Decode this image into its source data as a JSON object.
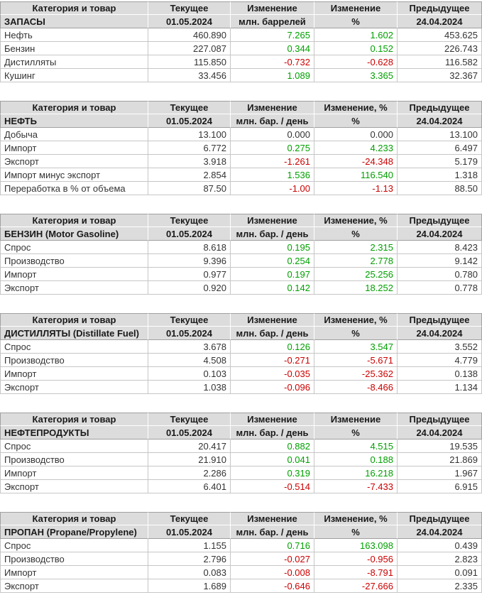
{
  "report": {
    "current_date": "01.05.2024",
    "previous_date": "24.04.2024",
    "colors": {
      "positive": "#00a000",
      "negative": "#cc0000",
      "neutral": "#333333",
      "header_background": "#dcdcdc",
      "header_border": "#a0a0a0",
      "cell_border": "#c6c6c6"
    }
  },
  "chart_data": [
    {
      "type": "table",
      "title": "ЗАПАСЫ",
      "unit": "млн. баррелей",
      "columns": [
        "Категория и товар",
        "Текущее",
        "Изменение",
        "Изменение",
        "Предыдущее"
      ],
      "subheader": [
        "ЗАПАСЫ",
        "01.05.2024",
        "млн. баррелей",
        "%",
        "24.04.2024"
      ],
      "rows": [
        [
          "Нефть",
          "460.890",
          "7.265",
          "1.602",
          "453.625"
        ],
        [
          "Бензин",
          "227.087",
          "0.344",
          "0.152",
          "226.743"
        ],
        [
          "Дистилляты",
          "115.850",
          "-0.732",
          "-0.628",
          "116.582"
        ],
        [
          "Кушинг",
          "33.456",
          "1.089",
          "3.365",
          "32.367"
        ]
      ]
    },
    {
      "type": "table",
      "title": "НЕФТЬ",
      "unit": "млн. бар. / день",
      "columns": [
        "Категория и товар",
        "Текущее",
        "Изменение",
        "Изменение, %",
        "Предыдущее"
      ],
      "subheader": [
        "НЕФТЬ",
        "01.05.2024",
        "млн. бар. / день",
        "%",
        "24.04.2024"
      ],
      "rows": [
        [
          "Добыча",
          "13.100",
          "0.000",
          "0.000",
          "13.100"
        ],
        [
          "Импорт",
          "6.772",
          "0.275",
          "4.233",
          "6.497"
        ],
        [
          "Экспорт",
          "3.918",
          "-1.261",
          "-24.348",
          "5.179"
        ],
        [
          "Импорт минус экспорт",
          "2.854",
          "1.536",
          "116.540",
          "1.318"
        ],
        [
          "Переработка в % от объема",
          "87.50",
          "-1.00",
          "-1.13",
          "88.50"
        ]
      ]
    },
    {
      "type": "table",
      "title": "БЕНЗИН (Motor Gasoline)",
      "unit": "млн. бар. / день",
      "columns": [
        "Категория и товар",
        "Текущее",
        "Изменение",
        "Изменение, %",
        "Предыдущее"
      ],
      "subheader": [
        "БЕНЗИН (Motor Gasoline)",
        "01.05.2024",
        "млн. бар. / день",
        "%",
        "24.04.2024"
      ],
      "rows": [
        [
          "Спрос",
          "8.618",
          "0.195",
          "2.315",
          "8.423"
        ],
        [
          "Производство",
          "9.396",
          "0.254",
          "2.778",
          "9.142"
        ],
        [
          "Импорт",
          "0.977",
          "0.197",
          "25.256",
          "0.780"
        ],
        [
          "Экспорт",
          "0.920",
          "0.142",
          "18.252",
          "0.778"
        ]
      ]
    },
    {
      "type": "table",
      "title": "ДИСТИЛЛЯТЫ (Distillate Fuel)",
      "unit": "млн. бар. / день",
      "columns": [
        "Категория и товар",
        "Текущее",
        "Изменение",
        "Изменение, %",
        "Предыдущее"
      ],
      "subheader": [
        "ДИСТИЛЛЯТЫ (Distillate Fuel)",
        "01.05.2024",
        "млн. бар. / день",
        "%",
        "24.04.2024"
      ],
      "rows": [
        [
          "Спрос",
          "3.678",
          "0.126",
          "3.547",
          "3.552"
        ],
        [
          "Производство",
          "4.508",
          "-0.271",
          "-5.671",
          "4.779"
        ],
        [
          "Импорт",
          "0.103",
          "-0.035",
          "-25.362",
          "0.138"
        ],
        [
          "Экспорт",
          "1.038",
          "-0.096",
          "-8.466",
          "1.134"
        ]
      ]
    },
    {
      "type": "table",
      "title": "НЕФТЕПРОДУКТЫ",
      "unit": "млн. бар. / день",
      "columns": [
        "Категория и товар",
        "Текущее",
        "Изменение",
        "Изменение",
        "Предыдущее"
      ],
      "subheader": [
        "НЕФТЕПРОДУКТЫ",
        "01.05.2024",
        "млн. бар. / день",
        "%",
        "24.04.2024"
      ],
      "rows": [
        [
          "Спрос",
          "20.417",
          "0.882",
          "4.515",
          "19.535"
        ],
        [
          "Производство",
          "21.910",
          "0.041",
          "0.188",
          "21.869"
        ],
        [
          "Импорт",
          "2.286",
          "0.319",
          "16.218",
          "1.967"
        ],
        [
          "Экспорт",
          "6.401",
          "-0.514",
          "-7.433",
          "6.915"
        ]
      ]
    },
    {
      "type": "table",
      "title": "ПРОПАН (Propane/Propylene)",
      "unit": "млн. бар. / день",
      "columns": [
        "Категория и товар",
        "Текущее",
        "Изменение",
        "Изменение, %",
        "Предыдущее"
      ],
      "subheader": [
        "ПРОПАН (Propane/Propylene)",
        "01.05.2024",
        "млн. бар. / день",
        "%",
        "24.04.2024"
      ],
      "rows": [
        [
          "Спрос",
          "1.155",
          "0.716",
          "163.098",
          "0.439"
        ],
        [
          "Производство",
          "2.796",
          "-0.027",
          "-0.956",
          "2.823"
        ],
        [
          "Импорт",
          "0.083",
          "-0.008",
          "-8.791",
          "0.091"
        ],
        [
          "Экспорт",
          "1.689",
          "-0.646",
          "-27.666",
          "2.335"
        ]
      ]
    }
  ]
}
